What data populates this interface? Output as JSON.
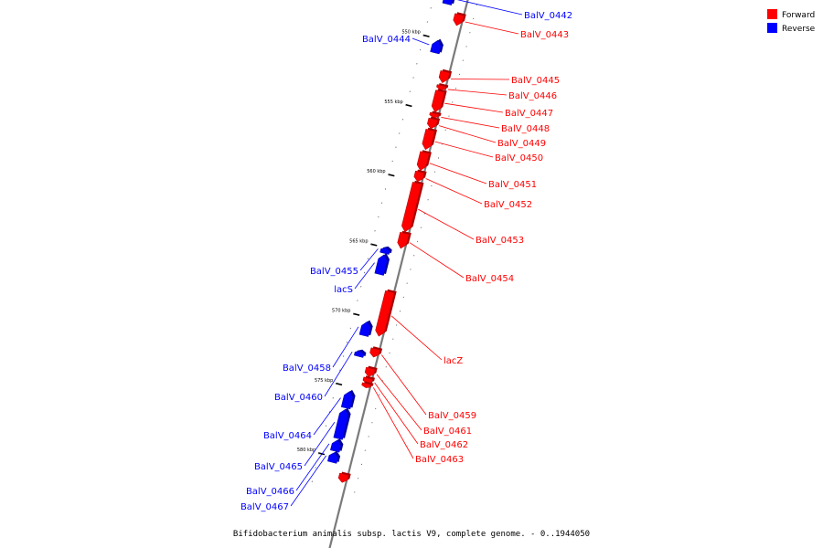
{
  "caption": "Bifidobacterium animalis subsp. lactis V9, complete genome. - 0..1944050",
  "legend": [
    {
      "label": "Forward",
      "color": "#ff0000"
    },
    {
      "label": "Reverse",
      "color": "#0000ff"
    }
  ],
  "colors": {
    "forward": "#ff0000",
    "reverse": "#0000ff",
    "backbone": "#7a7a7a"
  },
  "ticks": [
    {
      "kbp": 550,
      "label": "550 kbp"
    },
    {
      "kbp": 555,
      "label": "555 kbp"
    },
    {
      "kbp": 560,
      "label": "560 kbp"
    },
    {
      "kbp": 565,
      "label": "565 kbp"
    },
    {
      "kbp": 570,
      "label": "570 kbp"
    },
    {
      "kbp": 575,
      "label": "575 kbp"
    },
    {
      "kbp": 580,
      "label": "580 kbp"
    }
  ],
  "genes": [
    {
      "name": "BalV_0442",
      "strand": "reverse",
      "start_kbp": 546.6,
      "end_kbp": 547.5
    },
    {
      "name": "BalV_0443",
      "strand": "forward",
      "start_kbp": 548.0,
      "end_kbp": 548.8
    },
    {
      "name": "BalV_0444",
      "strand": "reverse",
      "start_kbp": 550.1,
      "end_kbp": 551.0
    },
    {
      "name": "BalV_0445",
      "strand": "forward",
      "start_kbp": 552.1,
      "end_kbp": 552.9
    },
    {
      "name": "BalV_0446",
      "strand": "forward",
      "start_kbp": 553.1,
      "end_kbp": 553.4
    },
    {
      "name": "BalV_0447",
      "strand": "forward",
      "start_kbp": 553.5,
      "end_kbp": 555.0
    },
    {
      "name": "BalV_0448",
      "strand": "forward",
      "start_kbp": 555.1,
      "end_kbp": 555.4
    },
    {
      "name": "BalV_0449",
      "strand": "forward",
      "start_kbp": 555.5,
      "end_kbp": 556.2
    },
    {
      "name": "BalV_0450",
      "strand": "forward",
      "start_kbp": 556.3,
      "end_kbp": 557.7
    },
    {
      "name": "BalV_0451",
      "strand": "forward",
      "start_kbp": 557.9,
      "end_kbp": 559.2
    },
    {
      "name": "BalV_0452",
      "strand": "forward",
      "start_kbp": 559.3,
      "end_kbp": 560.0
    },
    {
      "name": "BalV_0453",
      "strand": "forward",
      "start_kbp": 560.1,
      "end_kbp": 563.6
    },
    {
      "name": "BalV_0454",
      "strand": "forward",
      "start_kbp": 563.7,
      "end_kbp": 564.8
    },
    {
      "name": "BalV_0455",
      "strand": "reverse",
      "start_kbp": 565.0,
      "end_kbp": 565.4
    },
    {
      "name": "lacS",
      "strand": "reverse",
      "start_kbp": 565.5,
      "end_kbp": 566.9
    },
    {
      "name": "lacZ",
      "strand": "forward",
      "start_kbp": 567.9,
      "end_kbp": 571.1
    },
    {
      "name": "BalV_0458",
      "strand": "reverse",
      "start_kbp": 570.3,
      "end_kbp": 571.3
    },
    {
      "name": "BalV_0460",
      "strand": "reverse",
      "start_kbp": 572.4,
      "end_kbp": 572.8
    },
    {
      "name": "BalV_0459",
      "strand": "forward",
      "start_kbp": 572.0,
      "end_kbp": 572.6
    },
    {
      "name": "BalV_0461",
      "strand": "forward",
      "start_kbp": 573.4,
      "end_kbp": 574.0
    },
    {
      "name": "BalV_0462",
      "strand": "forward",
      "start_kbp": 574.1,
      "end_kbp": 574.5
    },
    {
      "name": "BalV_0463",
      "strand": "forward",
      "start_kbp": 574.5,
      "end_kbp": 574.8
    },
    {
      "name": "BalV_0464",
      "strand": "reverse",
      "start_kbp": 575.3,
      "end_kbp": 576.5
    },
    {
      "name": "BalV_0465",
      "strand": "reverse",
      "start_kbp": 576.6,
      "end_kbp": 578.7
    },
    {
      "name": "BalV_0466",
      "strand": "reverse",
      "start_kbp": 578.8,
      "end_kbp": 579.6
    },
    {
      "name": "BalV_0467",
      "strand": "reverse",
      "start_kbp": 579.7,
      "end_kbp": 580.4
    },
    {
      "name": "",
      "strand": "forward",
      "start_kbp": 581.0,
      "end_kbp": 581.6
    }
  ]
}
